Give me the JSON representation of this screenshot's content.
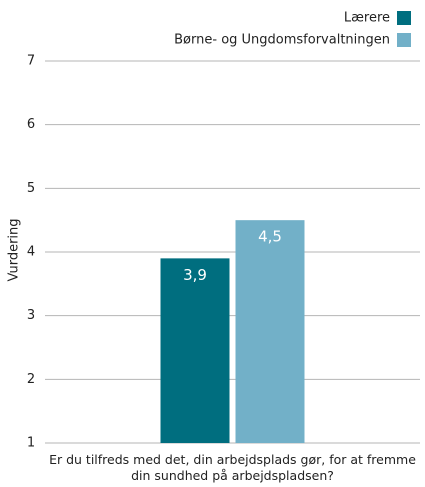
{
  "chart_data": {
    "type": "bar",
    "categories": [
      "Er du tilfreds med det, din arbejdsplads gør, for at fremme din sundhed på arbejdspladsen?"
    ],
    "series": [
      {
        "name": "Lærere",
        "color": "#006e7f",
        "values": [
          3.9
        ],
        "value_labels": [
          "3,9"
        ]
      },
      {
        "name": "Børne- og Ungdomsforvaltningen",
        "color": "#72b0c8",
        "values": [
          4.5
        ],
        "value_labels": [
          "4,5"
        ]
      }
    ],
    "ylabel": "Vurdering",
    "ylim": [
      1,
      7
    ],
    "yticks": [
      1,
      2,
      3,
      4,
      5,
      6,
      7
    ],
    "grid": true,
    "legend": "top-right"
  }
}
